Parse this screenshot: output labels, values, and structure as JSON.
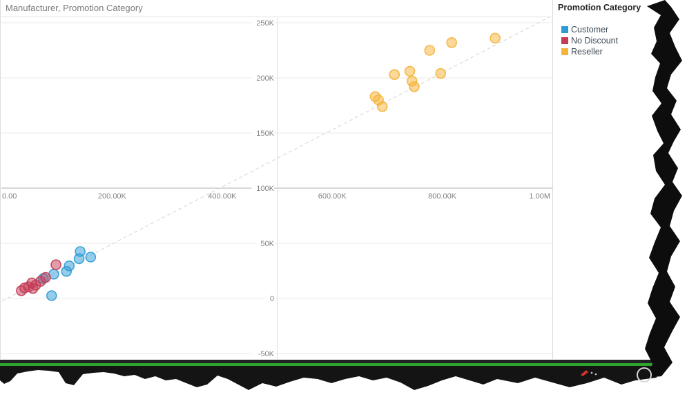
{
  "legend": {
    "title": "Promotion Category",
    "items": [
      {
        "label": "Customer",
        "color": "#2e9bd5"
      },
      {
        "label": "No Discount",
        "color": "#c43b55"
      },
      {
        "label": "Reseller",
        "color": "#f5b338"
      }
    ]
  },
  "chart_data": {
    "type": "scatter",
    "title": "Manufacturer, Promotion Category",
    "xlabel": "",
    "ylabel": "",
    "xlim": [
      0,
      1000000
    ],
    "ylim": [
      -50000,
      250000
    ],
    "grid": "on",
    "legend_position": "right",
    "axis_cross_x": 500000,
    "axis_cross_y": 100000,
    "x_ticks": [
      {
        "value": 0,
        "label": "0.00"
      },
      {
        "value": 200000,
        "label": "200.00K"
      },
      {
        "value": 400000,
        "label": "400.00K"
      },
      {
        "value": 600000,
        "label": "600.00K"
      },
      {
        "value": 800000,
        "label": "800.00K"
      },
      {
        "value": 1000000,
        "label": "1.00M"
      }
    ],
    "y_ticks": [
      {
        "value": 250000,
        "label": "250K"
      },
      {
        "value": 200000,
        "label": "200K"
      },
      {
        "value": 150000,
        "label": "150K"
      },
      {
        "value": 100000,
        "label": "100K"
      },
      {
        "value": 50000,
        "label": "50K"
      },
      {
        "value": 0,
        "label": "0"
      },
      {
        "value": -50000,
        "label": "-50K"
      }
    ],
    "trend_line": {
      "x1": 0,
      "y1": -2500,
      "x2": 994000,
      "y2": 255000,
      "style": "dashed"
    },
    "series": [
      {
        "name": "Customer",
        "color": "#2e9bd5",
        "points": [
          {
            "x": 142000,
            "y": 42500
          },
          {
            "x": 161000,
            "y": 37500
          },
          {
            "x": 140000,
            "y": 36000
          },
          {
            "x": 122000,
            "y": 29500
          },
          {
            "x": 117000,
            "y": 24500
          },
          {
            "x": 94000,
            "y": 22000
          },
          {
            "x": 75000,
            "y": 18000
          },
          {
            "x": 90000,
            "y": 2500
          }
        ]
      },
      {
        "name": "No Discount",
        "color": "#c43b55",
        "points": [
          {
            "x": 98000,
            "y": 30500
          },
          {
            "x": 79000,
            "y": 19000
          },
          {
            "x": 70000,
            "y": 15500
          },
          {
            "x": 54000,
            "y": 14000
          },
          {
            "x": 61000,
            "y": 12000
          },
          {
            "x": 48000,
            "y": 10500
          },
          {
            "x": 41000,
            "y": 9500
          },
          {
            "x": 56000,
            "y": 9000
          },
          {
            "x": 35000,
            "y": 7000
          }
        ]
      },
      {
        "name": "Reseller",
        "color": "#f5b338",
        "points": [
          {
            "x": 896000,
            "y": 236000
          },
          {
            "x": 817000,
            "y": 232000
          },
          {
            "x": 777000,
            "y": 225000
          },
          {
            "x": 741000,
            "y": 206000
          },
          {
            "x": 797000,
            "y": 204000
          },
          {
            "x": 713000,
            "y": 203000
          },
          {
            "x": 745000,
            "y": 197000
          },
          {
            "x": 749000,
            "y": 192000
          },
          {
            "x": 678000,
            "y": 183000
          },
          {
            "x": 684000,
            "y": 180000
          },
          {
            "x": 691000,
            "y": 174000
          }
        ]
      }
    ]
  },
  "decor": {
    "green_accent": "#2ea62e",
    "torn_color": "#0d0d0d",
    "taskbar_color": "#1c1c1c"
  }
}
